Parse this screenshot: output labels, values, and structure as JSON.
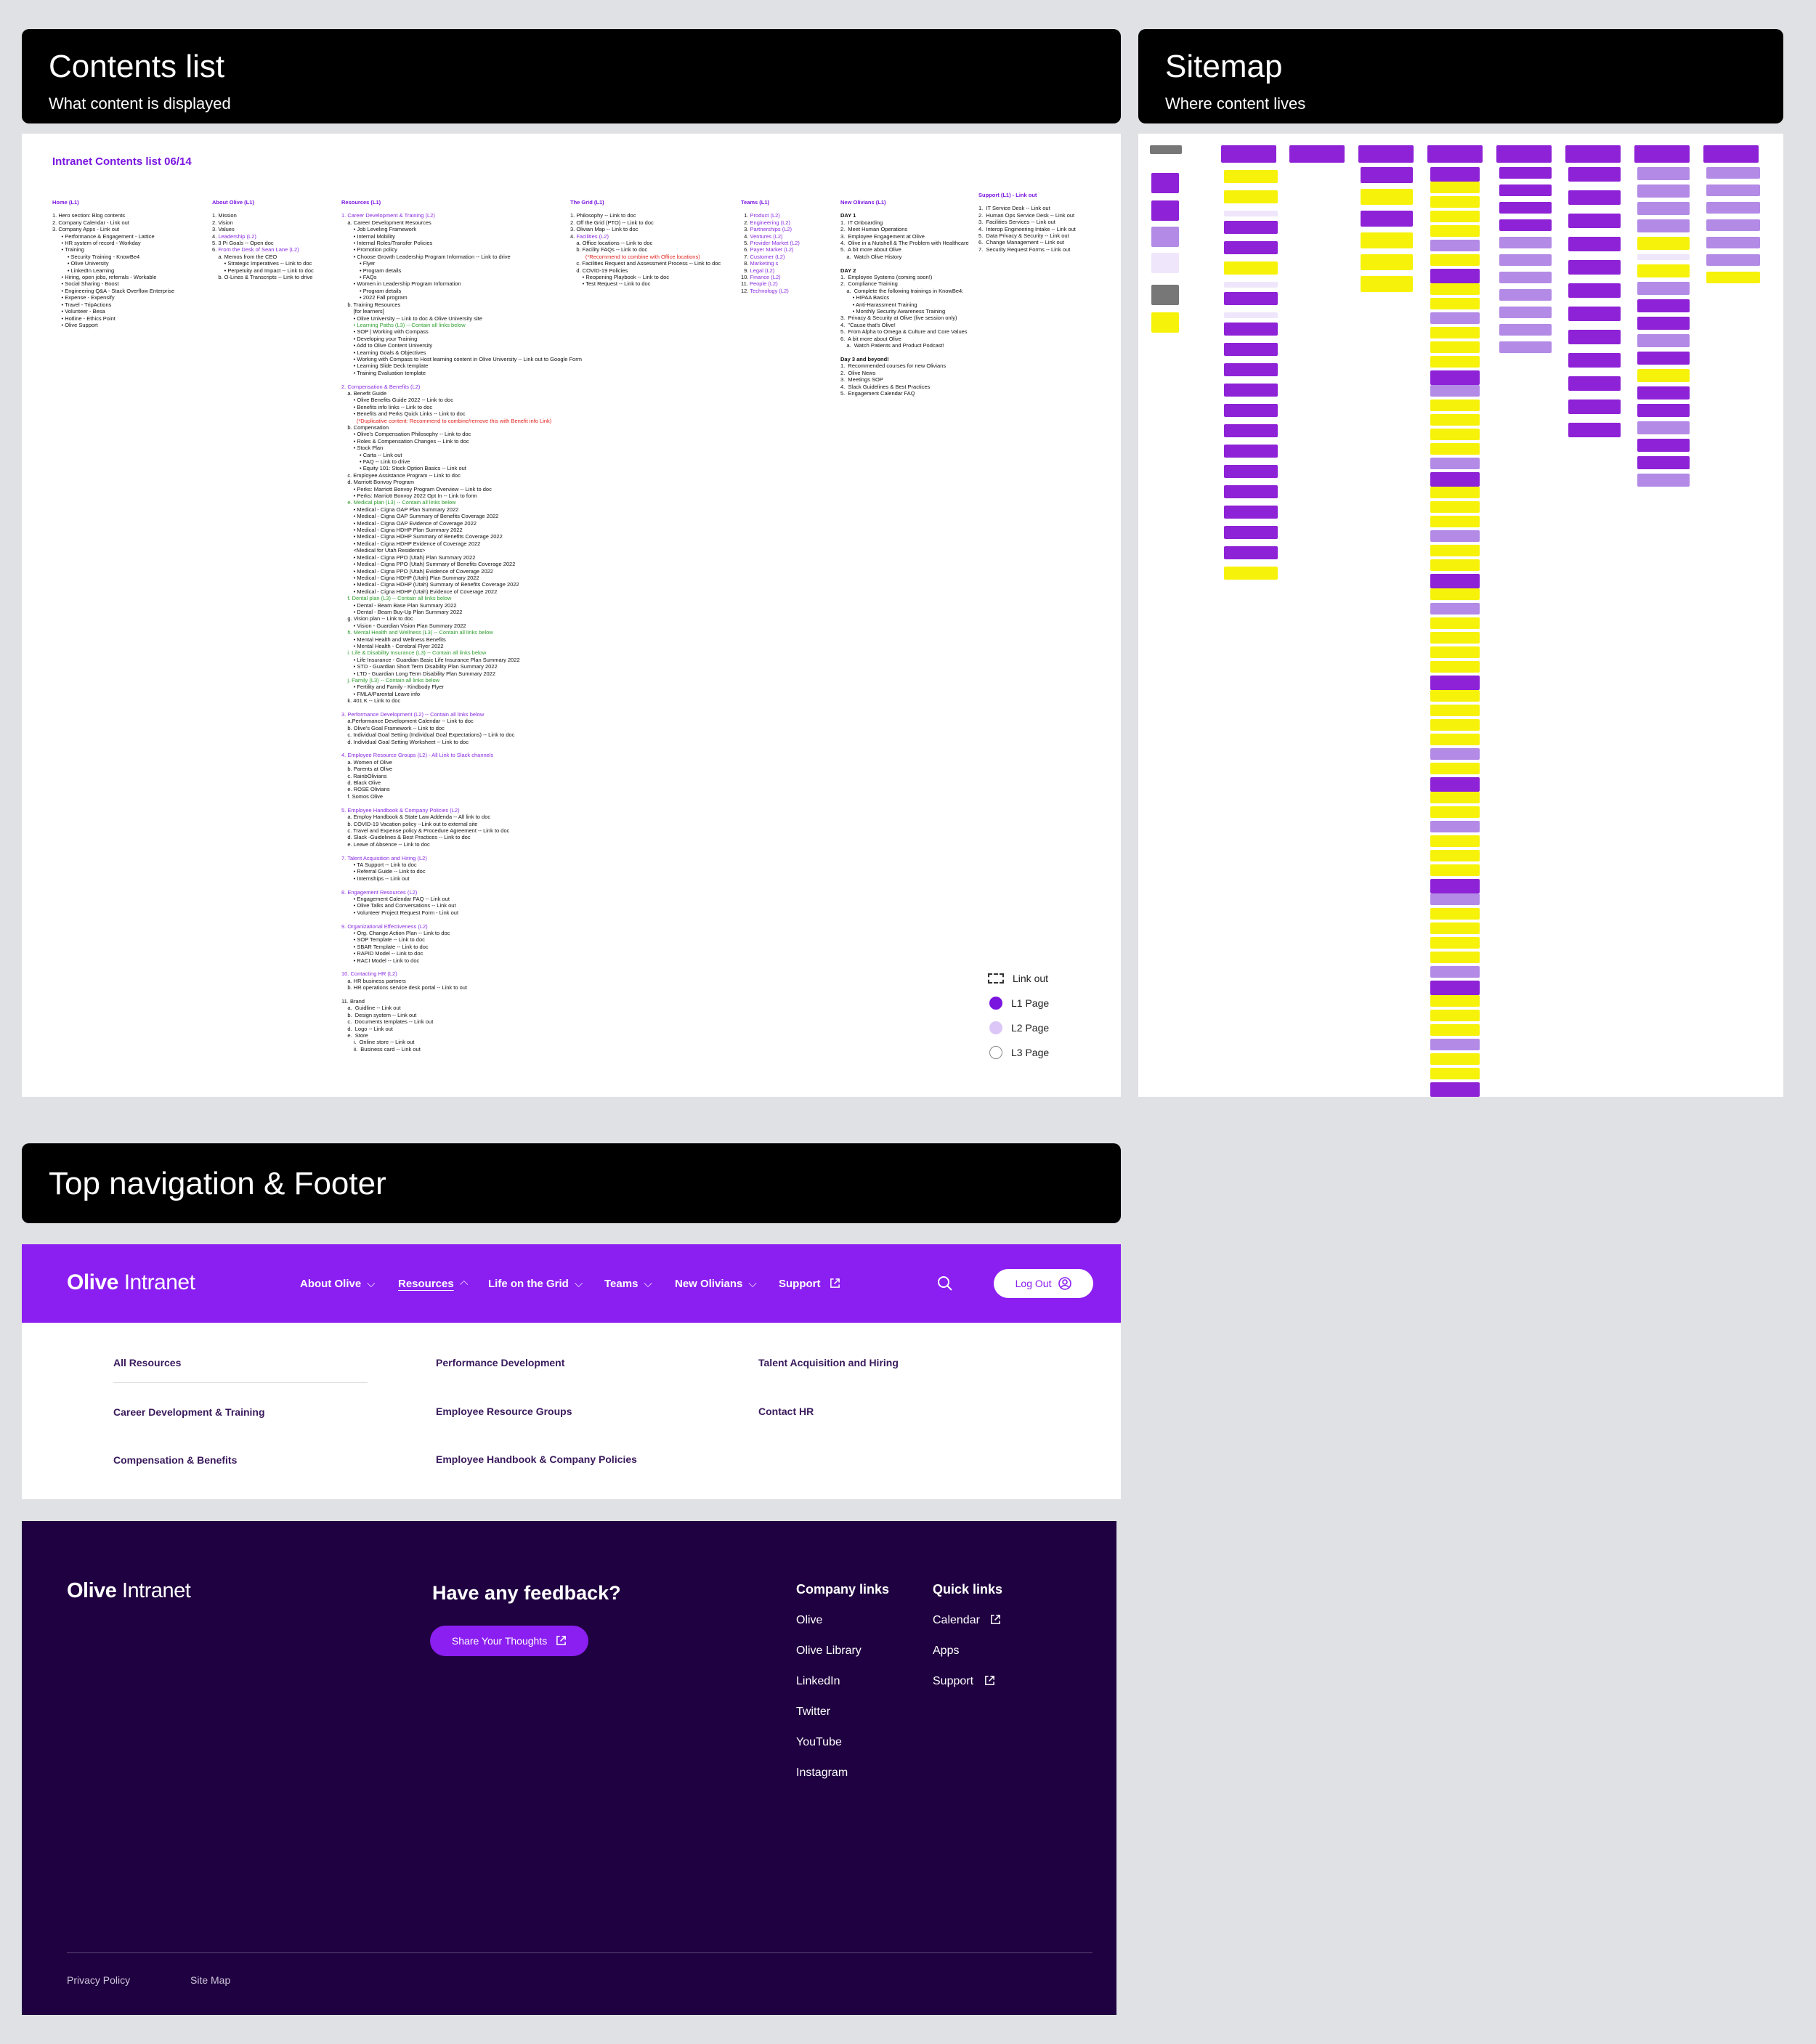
{
  "sections": {
    "contents": {
      "title": "Contents list",
      "subtitle": "What content is displayed"
    },
    "sitemap": {
      "title": "Sitemap",
      "subtitle": "Where content lives"
    },
    "nav": {
      "title": "Top navigation & Footer"
    }
  },
  "contents_list": {
    "title": "Intranet Contents list 06/14",
    "legend": [
      "Link out",
      "L1 Page",
      "L2 Page",
      "L3 Page"
    ],
    "colors": {
      "accent": "#7a15e0",
      "l1": "#7a15e0",
      "l2": "#dcc6f7",
      "l3": "#ffffff"
    }
  },
  "nav": {
    "brand_bold": "Olive",
    "brand_rest": " Intranet",
    "items": [
      {
        "label": "About Olive",
        "icon": "chevron-down-icon"
      },
      {
        "label": "Resources",
        "icon": "chevron-up-icon",
        "active": true
      },
      {
        "label": "Life on the Grid",
        "icon": "chevron-down-icon"
      },
      {
        "label": "Teams",
        "icon": "chevron-down-icon"
      },
      {
        "label": "New Olivians",
        "icon": "chevron-down-icon"
      },
      {
        "label": "Support",
        "icon": "external-link-icon"
      }
    ],
    "logout": "Log Out",
    "colors": {
      "nav_bg": "#8b1ef0",
      "footer_bg": "#1f0040"
    }
  },
  "resources_menu": {
    "col1": [
      "All Resources",
      "Career Development & Training",
      "Compensation & Benefits"
    ],
    "col2": [
      "Performance Development",
      "Employee Resource Groups",
      "Employee Handbook & Company Policies"
    ],
    "col3": [
      "Talent Acquisition and Hiring",
      "Contact HR"
    ]
  },
  "footer": {
    "brand_bold": "Olive",
    "brand_rest": " Intranet",
    "feedback_heading": "Have any feedback?",
    "feedback_button": "Share Your Thoughts",
    "company_links_heading": "Company links",
    "company_links": [
      "Olive",
      "Olive Library",
      "LinkedIn",
      "Twitter",
      "YouTube",
      "Instagram"
    ],
    "quick_links_heading": "Quick links",
    "quick_links": [
      {
        "label": "Calendar",
        "external": true
      },
      {
        "label": "Apps",
        "external": false
      },
      {
        "label": "Support",
        "external": true
      }
    ],
    "bottom_links": [
      "Privacy Policy",
      "Site Map"
    ]
  }
}
